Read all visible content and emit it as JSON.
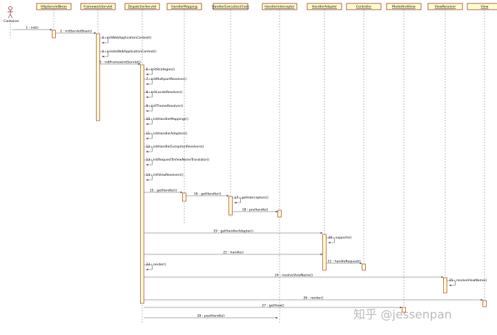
{
  "participants": [
    ": Container",
    "HttpServletBean",
    "FrameworkServlet",
    "DispatcherServlet",
    "HandlerMapping",
    "HandlerExecutionChain",
    "HandlerInterceptor",
    "HandlerAdapter",
    "Controller",
    "ModelAndView",
    "ViewResolver",
    "View"
  ],
  "messages": [
    "1 : init()",
    "2 : initServletBean()",
    "3 : initWebApplicationContext()",
    "4 : createWebApplicationContext()",
    "5 : initFrameworkServlet()",
    "6 : initStrategies()",
    "7 : initMultipartResolver()",
    "8 : initLocaleResolver()",
    "9 : initThemeResolver()",
    "10 : initHandlerMappings()",
    "11 : initHandlerAdapters()",
    "12 : initHandlerExceptionResolvers()",
    "13 : initRequestToViewNameTranslator()",
    "14 : initViewResolvers()",
    "15 : getHandler()",
    "16 : getHandler()",
    "17 : getInterceptors()",
    "18 : preHandle()",
    "19 : getHandlerAdapter()",
    "20 : supports()",
    "21 : handle()",
    "22 : handleRequest()",
    "23 : render()",
    "24 : resolveViewName()",
    "25 : resolveViewName()",
    "26 : render()",
    "27 : getView()",
    "28 : postHandle()"
  ],
  "watermark": "知乎 @jessenpan"
}
